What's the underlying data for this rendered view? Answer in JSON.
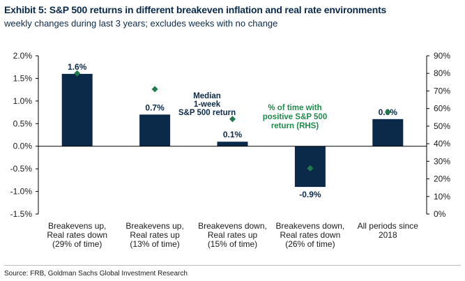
{
  "header": {
    "title": "Exhibit 5: S&P 500 returns in different breakeven inflation and real rate environments",
    "subtitle": "weekly changes during last 3 years; excludes weeks with no change"
  },
  "footer": {
    "source": "Source: FRB, Goldman Sachs Global Investment Research"
  },
  "colors": {
    "bar": "#0b2a4a",
    "marker": "#1f7a4d",
    "annotation_bar": "#0b2a4a",
    "annotation_marker": "#1f8a4c"
  },
  "chart_data": {
    "type": "bar",
    "categories": [
      [
        "Breakevens up,",
        "Real rates down",
        "(29% of time)"
      ],
      [
        "Breakevens up,",
        "Real rates up",
        "(13% of time)"
      ],
      [
        "Breakevens down,",
        "Real rates up",
        "(15% of time)"
      ],
      [
        "Breakevens down,",
        "Real rates down",
        "(26% of time)"
      ],
      [
        "All periods since",
        "2018"
      ]
    ],
    "series": [
      {
        "values": [
          1.6,
          0.7,
          0.1,
          -0.9,
          0.6
        ],
        "labels": [
          "1.6%",
          "0.7%",
          "0.1%",
          "-0.9%",
          "0.6%"
        ],
        "axis": "left"
      },
      {
        "values": [
          80,
          71,
          54,
          26,
          58
        ],
        "axis": "right"
      }
    ],
    "y_left": {
      "min": -1.5,
      "max": 2.0,
      "ticks": [
        "2.0%",
        "1.5%",
        "1.0%",
        "0.5%",
        "0.0%",
        "-0.5%",
        "-1.0%",
        "-1.5%"
      ]
    },
    "y_right": {
      "min": 0,
      "max": 90,
      "ticks": [
        "90%",
        "80%",
        "70%",
        "60%",
        "50%",
        "40%",
        "30%",
        "20%",
        "10%",
        "0%"
      ]
    },
    "annotations": {
      "bar_label": [
        "Median",
        "1-week",
        "S&P 500 return"
      ],
      "marker_label": [
        "% of time with",
        "positive S&P 500",
        "return (RHS)"
      ]
    },
    "grid": false,
    "legend": "none"
  }
}
